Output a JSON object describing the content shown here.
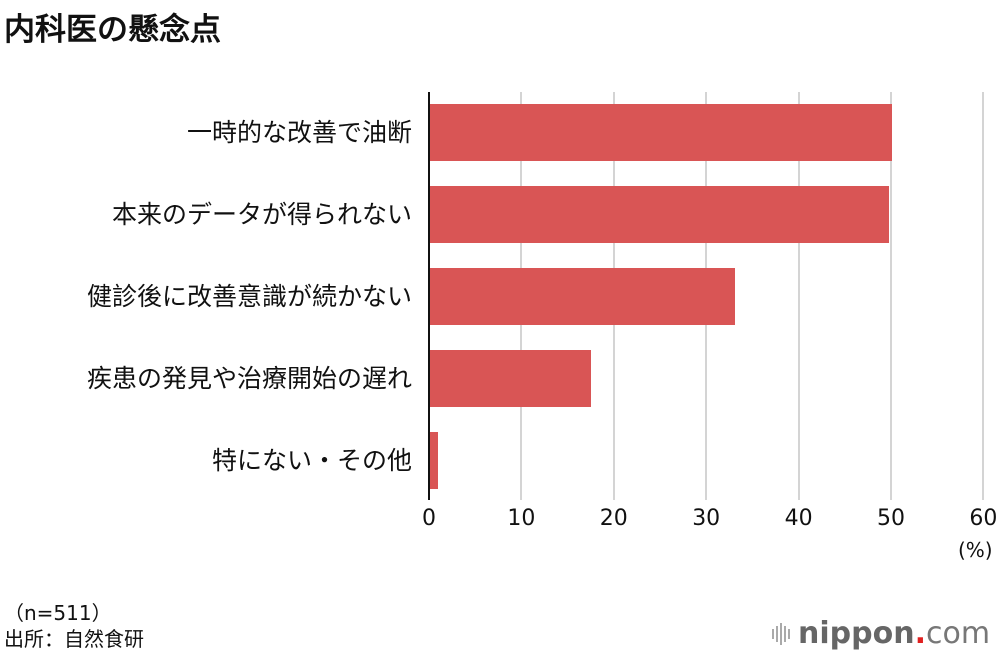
{
  "title": "内科医の懸念点",
  "chart_data": {
    "type": "bar",
    "orientation": "horizontal",
    "title": "内科医の懸念点",
    "categories": [
      "一時的な改善で油断",
      "本来のデータが得られない",
      "健診後に改善意識が続かない",
      "疾患の発見や治療開始の遅れ",
      "特にない・その他"
    ],
    "values": [
      50.1,
      49.8,
      33.1,
      17.5,
      1.0
    ],
    "xlabel": "(%)",
    "ylabel": "",
    "xlim": [
      0,
      60
    ],
    "xticks": [
      "0",
      "10",
      "20",
      "30",
      "40",
      "50",
      "60"
    ],
    "grid": true,
    "bar_color": "#d95555"
  },
  "footer": {
    "sample": "（n=511）",
    "source": "出所：自然食研"
  },
  "logo": {
    "name": "nippon",
    "dot": ".",
    "suffix": "com"
  }
}
